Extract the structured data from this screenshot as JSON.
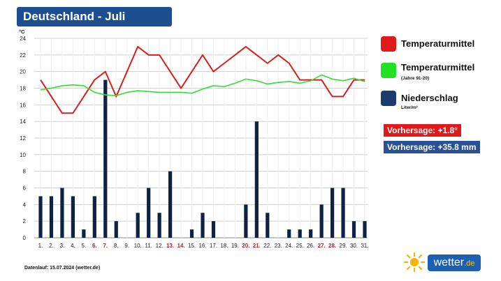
{
  "header": {
    "title": "Deutschland - Juli"
  },
  "legend": {
    "items": [
      {
        "label": "Temperaturmittel",
        "sub": "",
        "color": "#e01a1a"
      },
      {
        "label": "Temperaturmittel",
        "sub": "(Jahre 91-20)",
        "color": "#22e022"
      },
      {
        "label": "Niederschlag",
        "sub": "Liter/m²",
        "color": "#1c3c6e"
      }
    ]
  },
  "forecast": {
    "temp": {
      "text": "Vorhersage: +1.8°",
      "color": "#e01a1a"
    },
    "precip": {
      "text": "Vorhersage: +35.8 mm",
      "color": "#2a5194"
    }
  },
  "footer": {
    "note": "Datenlauf: 15.07.2024 (wetter.de)"
  },
  "logo": {
    "text": "wetter",
    "tld": ".de"
  },
  "chart_data": {
    "type": "bar+line",
    "y_unit": "°C",
    "ylim": [
      0,
      24
    ],
    "yticks": [
      0,
      2,
      4,
      6,
      8,
      10,
      12,
      14,
      16,
      18,
      20,
      22,
      24
    ],
    "grid": true,
    "categories": [
      "1.",
      "2.",
      "3.",
      "4.",
      "5.",
      "6.",
      "7.",
      "8.",
      "9.",
      "10.",
      "11.",
      "12.",
      "13.",
      "14.",
      "15.",
      "16.",
      "17.",
      "18.",
      "19.",
      "20.",
      "21.",
      "22.",
      "23.",
      "24.",
      "25.",
      "26.",
      "27.",
      "28.",
      "29.",
      "30.",
      "31."
    ],
    "weekend_days": [
      "6.",
      "7.",
      "13.",
      "14.",
      "20.",
      "21.",
      "27.",
      "28."
    ],
    "series": [
      {
        "name": "Temperaturmittel",
        "type": "line",
        "color": "#d42020",
        "values": [
          19,
          17,
          15,
          15,
          17,
          19,
          20,
          17,
          20,
          23,
          22,
          22,
          20,
          18,
          20,
          22,
          20,
          21,
          22,
          23,
          22,
          21,
          22,
          21,
          19,
          19,
          19,
          17,
          17,
          19,
          19
        ]
      },
      {
        "name": "Temperaturmittel (Jahre 91-20)",
        "type": "line",
        "color": "#33dd33",
        "values": [
          17.8,
          18,
          18.3,
          18.4,
          18.3,
          17.5,
          17.2,
          17.1,
          17.5,
          17.7,
          17.6,
          17.5,
          17.5,
          17.5,
          17.4,
          17.9,
          18.3,
          18.2,
          18.6,
          19.1,
          18.9,
          18.5,
          18.7,
          18.8,
          18.6,
          18.9,
          19.6,
          19.1,
          18.9,
          19.2,
          18.8
        ]
      },
      {
        "name": "Niederschlag",
        "type": "bar",
        "color": "#0f2244",
        "values": [
          5,
          5,
          6,
          5,
          1,
          5,
          19,
          2,
          0,
          3,
          6,
          3,
          8,
          0,
          1,
          3,
          2,
          0,
          0,
          4,
          14,
          3,
          0,
          1,
          1,
          1,
          4,
          6,
          6,
          2,
          2
        ]
      }
    ]
  }
}
